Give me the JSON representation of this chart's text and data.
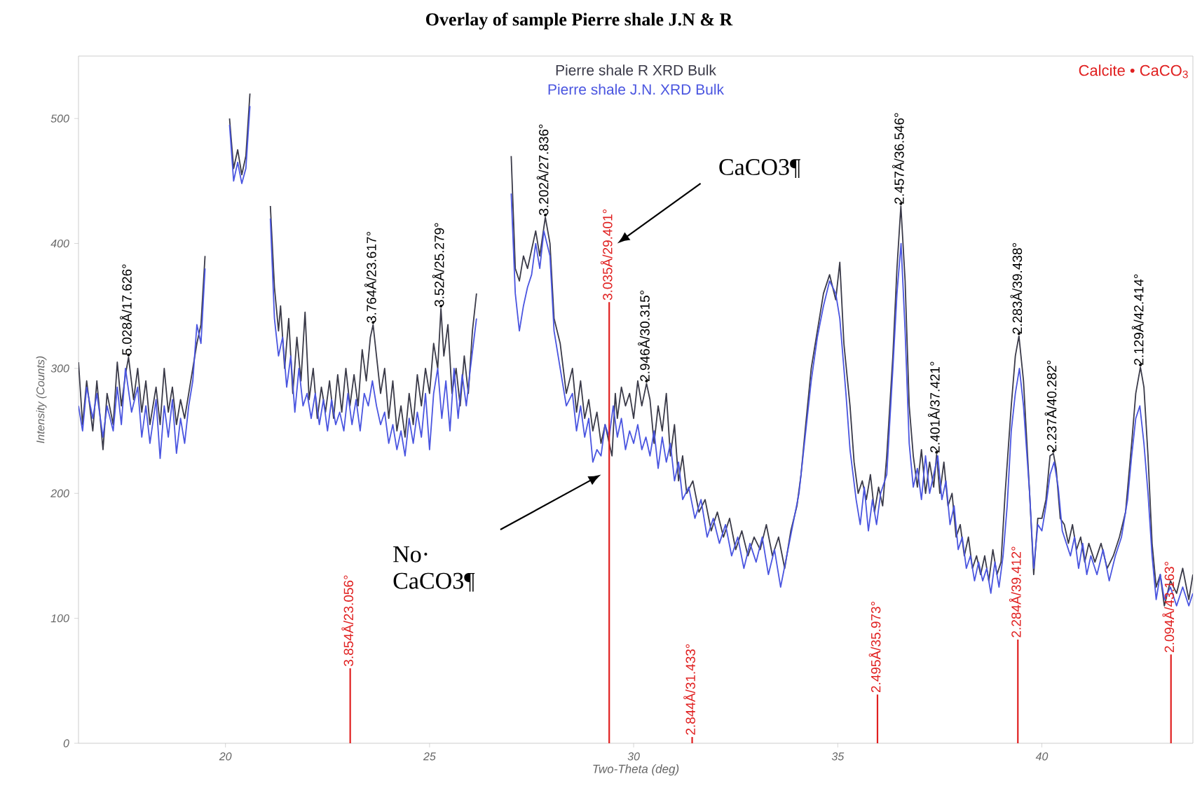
{
  "chart_data": {
    "type": "line",
    "title": "Overlay of sample Pierre shale J.N & R",
    "xlabel": "Two-Theta (deg)",
    "ylabel": "Intensity (Counts)",
    "xlim": [
      16.4,
      43.7
    ],
    "ylim": [
      0,
      550
    ],
    "xticks": [
      20,
      25,
      30,
      35,
      40
    ],
    "yticks": [
      0,
      100,
      200,
      300,
      400,
      500
    ],
    "grid": false,
    "legend": "top",
    "line_style": "solid",
    "marker": "none",
    "series": [
      {
        "name": "Pierre shale R XRD Bulk",
        "color": "#3a3a48",
        "x": [
          16.4,
          16.5,
          16.6,
          16.75,
          16.85,
          17.0,
          17.1,
          17.25,
          17.35,
          17.45,
          17.55,
          17.626,
          17.75,
          17.85,
          17.95,
          18.05,
          18.15,
          18.3,
          18.4,
          18.5,
          18.6,
          18.7,
          18.8,
          18.9,
          19.0,
          19.1,
          19.2,
          19.3,
          19.4,
          19.5,
          19.64,
          20.0,
          20.1,
          20.2,
          20.3,
          20.4,
          20.5,
          20.6,
          20.7,
          21.0,
          21.1,
          21.2,
          21.3,
          21.35,
          21.45,
          21.55,
          21.65,
          21.75,
          21.85,
          21.95,
          22.05,
          22.15,
          22.25,
          22.35,
          22.45,
          22.55,
          22.65,
          22.75,
          22.85,
          22.95,
          23.05,
          23.15,
          23.25,
          23.35,
          23.45,
          23.55,
          23.617,
          23.7,
          23.8,
          23.9,
          24.0,
          24.1,
          24.2,
          24.3,
          24.4,
          24.5,
          24.6,
          24.7,
          24.8,
          24.9,
          25.0,
          25.1,
          25.2,
          25.279,
          25.35,
          25.45,
          25.55,
          25.65,
          25.75,
          25.85,
          25.95,
          26.05,
          26.15,
          26.3,
          26.9,
          27.0,
          27.1,
          27.2,
          27.3,
          27.4,
          27.5,
          27.6,
          27.7,
          27.836,
          27.95,
          28.05,
          28.2,
          28.35,
          28.5,
          28.6,
          28.7,
          28.8,
          28.9,
          29.0,
          29.1,
          29.2,
          29.3,
          29.47,
          29.55,
          29.6,
          29.7,
          29.8,
          29.9,
          30.0,
          30.1,
          30.2,
          30.315,
          30.4,
          30.5,
          30.6,
          30.7,
          30.8,
          30.9,
          31.0,
          31.1,
          31.2,
          31.3,
          31.45,
          31.6,
          31.75,
          31.9,
          32.05,
          32.2,
          32.35,
          32.5,
          32.65,
          32.8,
          32.95,
          33.1,
          33.25,
          33.4,
          33.55,
          33.7,
          33.85,
          34.0,
          34.1,
          34.2,
          34.35,
          34.5,
          34.65,
          34.8,
          34.95,
          35.05,
          35.15,
          35.3,
          35.4,
          35.5,
          35.6,
          35.7,
          35.8,
          35.9,
          36.0,
          36.1,
          36.2,
          36.35,
          36.45,
          36.546,
          36.65,
          36.75,
          36.85,
          36.95,
          37.05,
          37.15,
          37.25,
          37.35,
          37.421,
          37.5,
          37.6,
          37.7,
          37.8,
          37.9,
          38.0,
          38.1,
          38.2,
          38.3,
          38.4,
          38.5,
          38.6,
          38.7,
          38.8,
          38.9,
          39.0,
          39.1,
          39.25,
          39.35,
          39.438,
          39.55,
          39.7,
          39.8,
          39.9,
          40.0,
          40.1,
          40.2,
          40.282,
          40.35,
          40.45,
          40.55,
          40.65,
          40.75,
          40.85,
          40.95,
          41.05,
          41.15,
          41.3,
          41.45,
          41.6,
          41.75,
          41.9,
          42.05,
          42.2,
          42.3,
          42.414,
          42.5,
          42.6,
          42.7,
          42.8,
          42.9,
          43.0,
          43.15,
          43.3,
          43.45,
          43.6,
          43.7
        ],
        "values": [
          305,
          255,
          290,
          250,
          290,
          235,
          280,
          255,
          305,
          270,
          295,
          309,
          275,
          300,
          265,
          290,
          255,
          285,
          255,
          300,
          265,
          285,
          255,
          275,
          260,
          280,
          300,
          320,
          335,
          390,
          null,
          null,
          500,
          460,
          475,
          455,
          470,
          520,
          null,
          null,
          430,
          365,
          330,
          350,
          300,
          340,
          280,
          325,
          290,
          345,
          275,
          300,
          260,
          285,
          265,
          290,
          260,
          295,
          265,
          300,
          270,
          295,
          270,
          315,
          290,
          325,
          335,
          310,
          280,
          300,
          260,
          290,
          250,
          270,
          245,
          280,
          255,
          295,
          270,
          300,
          280,
          320,
          300,
          348,
          310,
          335,
          280,
          300,
          270,
          310,
          280,
          330,
          360,
          null,
          null,
          470,
          380,
          370,
          390,
          380,
          395,
          410,
          390,
          421,
          400,
          340,
          320,
          280,
          300,
          265,
          290,
          260,
          275,
          250,
          265,
          240,
          255,
          230,
          280,
          260,
          285,
          270,
          280,
          260,
          290,
          270,
          288,
          275,
          240,
          270,
          250,
          280,
          230,
          255,
          210,
          230,
          200,
          210,
          185,
          195,
          170,
          185,
          165,
          180,
          155,
          170,
          150,
          165,
          155,
          175,
          150,
          165,
          140,
          170,
          190,
          215,
          250,
          300,
          330,
          360,
          375,
          355,
          385,
          320,
          270,
          225,
          200,
          210,
          195,
          215,
          185,
          205,
          190,
          230,
          310,
          380,
          430,
          370,
          270,
          230,
          205,
          235,
          200,
          225,
          205,
          231,
          200,
          225,
          190,
          200,
          165,
          175,
          150,
          165,
          140,
          150,
          135,
          150,
          130,
          155,
          135,
          145,
          200,
          270,
          310,
          326,
          290,
          200,
          135,
          180,
          180,
          195,
          230,
          232,
          220,
          180,
          175,
          160,
          175,
          155,
          165,
          145,
          160,
          145,
          160,
          140,
          150,
          165,
          185,
          240,
          280,
          301,
          285,
          230,
          160,
          125,
          135,
          110,
          130,
          120,
          140,
          115,
          135
        ]
      },
      {
        "name": "Pierre shale J.N. XRD Bulk",
        "color": "#4a55e0",
        "x": [
          16.4,
          16.5,
          16.6,
          16.75,
          16.85,
          17.0,
          17.1,
          17.25,
          17.35,
          17.45,
          17.55,
          17.7,
          17.85,
          17.95,
          18.05,
          18.15,
          18.3,
          18.4,
          18.5,
          18.6,
          18.7,
          18.8,
          18.9,
          19.0,
          19.1,
          19.2,
          19.3,
          19.4,
          19.5,
          19.64,
          20.0,
          20.1,
          20.2,
          20.3,
          20.4,
          20.5,
          20.6,
          20.7,
          21.0,
          21.1,
          21.2,
          21.3,
          21.4,
          21.5,
          21.6,
          21.7,
          21.8,
          21.9,
          22.0,
          22.1,
          22.2,
          22.3,
          22.4,
          22.5,
          22.6,
          22.7,
          22.8,
          22.9,
          23.0,
          23.1,
          23.2,
          23.3,
          23.4,
          23.5,
          23.6,
          23.7,
          23.8,
          23.9,
          24.0,
          24.1,
          24.2,
          24.3,
          24.4,
          24.5,
          24.6,
          24.7,
          24.8,
          24.9,
          25.0,
          25.1,
          25.2,
          25.3,
          25.4,
          25.5,
          25.6,
          25.7,
          25.8,
          25.9,
          26.0,
          26.15,
          26.3,
          26.9,
          27.0,
          27.1,
          27.2,
          27.3,
          27.4,
          27.5,
          27.6,
          27.7,
          27.8,
          27.95,
          28.05,
          28.2,
          28.35,
          28.5,
          28.6,
          28.7,
          28.8,
          28.9,
          29.0,
          29.1,
          29.2,
          29.3,
          29.4,
          29.5,
          29.6,
          29.7,
          29.8,
          29.9,
          30.0,
          30.1,
          30.2,
          30.3,
          30.4,
          30.5,
          30.6,
          30.7,
          30.8,
          30.9,
          31.0,
          31.1,
          31.2,
          31.35,
          31.5,
          31.65,
          31.8,
          31.95,
          32.1,
          32.25,
          32.4,
          32.55,
          32.7,
          32.85,
          33.0,
          33.15,
          33.3,
          33.45,
          33.6,
          33.75,
          33.9,
          34.05,
          34.2,
          34.35,
          34.5,
          34.65,
          34.8,
          34.95,
          35.05,
          35.2,
          35.3,
          35.45,
          35.55,
          35.65,
          35.75,
          35.85,
          35.95,
          36.05,
          36.2,
          36.35,
          36.45,
          36.55,
          36.65,
          36.75,
          36.85,
          36.95,
          37.05,
          37.15,
          37.25,
          37.35,
          37.45,
          37.55,
          37.65,
          37.75,
          37.85,
          37.95,
          38.05,
          38.15,
          38.25,
          38.35,
          38.45,
          38.55,
          38.65,
          38.75,
          38.85,
          38.95,
          39.05,
          39.15,
          39.25,
          39.35,
          39.45,
          39.55,
          39.7,
          39.8,
          39.9,
          40.0,
          40.1,
          40.2,
          40.3,
          40.4,
          40.5,
          40.6,
          40.7,
          40.8,
          40.9,
          41.0,
          41.1,
          41.2,
          41.35,
          41.5,
          41.65,
          41.8,
          41.95,
          42.1,
          42.2,
          42.3,
          42.4,
          42.5,
          42.6,
          42.7,
          42.8,
          42.9,
          43.0,
          43.15,
          43.3,
          43.45,
          43.6,
          43.7
        ],
        "values": [
          270,
          250,
          285,
          260,
          280,
          245,
          270,
          250,
          285,
          255,
          300,
          265,
          285,
          245,
          270,
          240,
          275,
          228,
          270,
          245,
          275,
          232,
          260,
          240,
          270,
          290,
          335,
          320,
          380,
          null,
          null,
          495,
          450,
          465,
          448,
          460,
          510,
          null,
          null,
          420,
          340,
          310,
          325,
          285,
          310,
          265,
          300,
          270,
          280,
          260,
          280,
          255,
          275,
          250,
          275,
          255,
          265,
          250,
          280,
          255,
          275,
          250,
          280,
          270,
          290,
          270,
          255,
          265,
          240,
          255,
          235,
          250,
          230,
          260,
          240,
          265,
          245,
          280,
          235,
          280,
          300,
          260,
          290,
          250,
          300,
          260,
          295,
          270,
          300,
          340,
          null,
          null,
          440,
          360,
          330,
          350,
          365,
          375,
          400,
          380,
          410,
          390,
          330,
          300,
          270,
          280,
          250,
          270,
          245,
          260,
          225,
          235,
          230,
          255,
          245,
          270,
          245,
          260,
          235,
          250,
          240,
          255,
          235,
          245,
          230,
          250,
          220,
          245,
          225,
          240,
          210,
          225,
          195,
          205,
          180,
          195,
          165,
          180,
          160,
          175,
          150,
          165,
          140,
          160,
          145,
          165,
          135,
          155,
          125,
          150,
          175,
          200,
          245,
          290,
          325,
          350,
          370,
          360,
          340,
          280,
          235,
          195,
          175,
          205,
          170,
          195,
          175,
          200,
          215,
          300,
          360,
          400,
          330,
          240,
          205,
          220,
          195,
          230,
          200,
          215,
          230,
          195,
          210,
          175,
          190,
          155,
          165,
          140,
          150,
          130,
          145,
          130,
          140,
          120,
          145,
          125,
          150,
          190,
          250,
          280,
          300,
          270,
          200,
          140,
          175,
          170,
          190,
          215,
          225,
          205,
          170,
          160,
          150,
          165,
          140,
          160,
          135,
          150,
          135,
          155,
          130,
          150,
          165,
          195,
          230,
          260,
          270,
          240,
          200,
          150,
          115,
          135,
          115,
          125,
          110,
          125,
          110,
          120
        ]
      },
      {
        "name": "Calcite • CaCO$_{3}$",
        "type": "bar",
        "color": "#e02020",
        "x": [
          23.056,
          29.401,
          31.433,
          35.973,
          39.412,
          43.163
        ],
        "values": [
          60,
          353,
          5,
          39,
          83,
          71
        ]
      }
    ],
    "annotations": [
      "CaCO3¶",
      "No· CaCO3¶",
      {
        "text": "5.028Å/17.626°",
        "x": 17.626,
        "y": 309
      },
      {
        "text": "3.764Å/23.617°",
        "x": 23.617,
        "y": 335
      },
      {
        "text": "3.52Å/25.279°",
        "x": 25.279,
        "y": 348
      },
      {
        "text": "3.202Å/27.836°",
        "x": 27.836,
        "y": 421
      },
      {
        "text": "2.946Å/30.315°",
        "x": 30.315,
        "y": 288
      },
      {
        "text": "2.457Å/36.546°",
        "x": 36.546,
        "y": 430
      },
      {
        "text": "2.401Å/37.421°",
        "x": 37.421,
        "y": 231
      },
      {
        "text": "2.283Å/39.438°",
        "x": 39.438,
        "y": 326
      },
      {
        "text": "2.237Å/40.282°",
        "x": 40.282,
        "y": 232
      },
      {
        "text": "2.129Å/42.414°",
        "x": 42.414,
        "y": 301
      },
      {
        "text": "3.854Å/23.056°",
        "x": 23.056,
        "y": 60
      },
      {
        "text": "3.035Å/29.401°",
        "x": 29.401,
        "y": 353
      },
      {
        "text": "2.844Å/31.433°",
        "x": 31.433,
        "y": 5
      },
      {
        "text": "2.495Å/35.973°",
        "x": 35.973,
        "y": 39
      },
      {
        "text": "2.284Å/39.412°",
        "x": 39.412,
        "y": 83
      },
      {
        "text": "2.094Å/43.163°",
        "x": 43.163,
        "y": 71
      }
    ]
  }
}
